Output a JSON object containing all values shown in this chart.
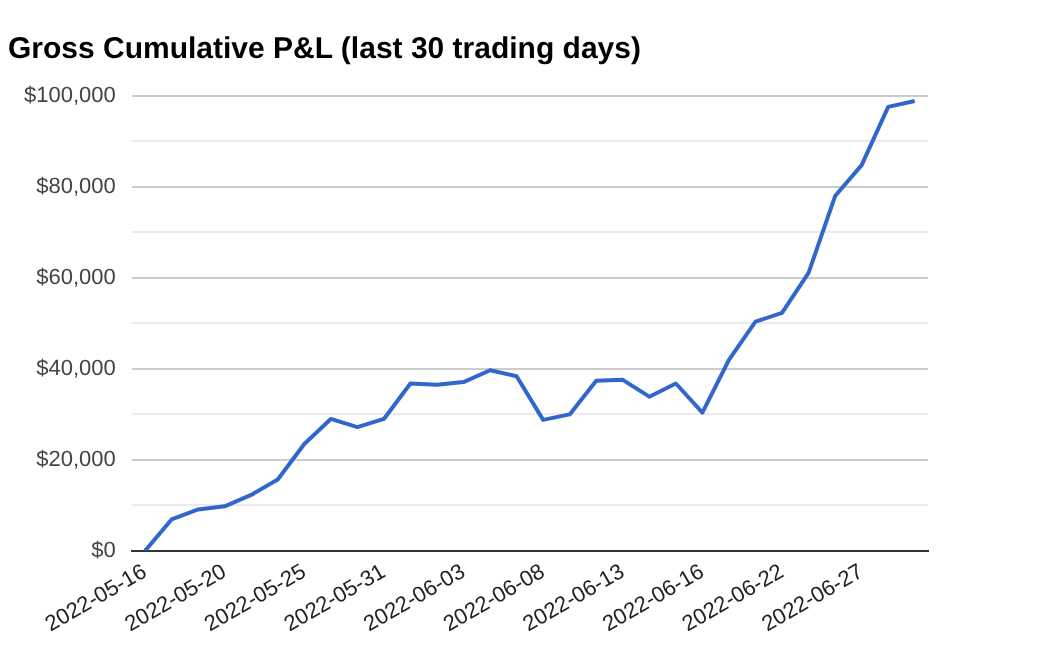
{
  "chart_data": {
    "type": "line",
    "title": "Gross Cumulative P&L (last 30 trading days)",
    "categories": [
      "2022-05-16",
      null,
      null,
      "2022-05-20",
      null,
      null,
      "2022-05-25",
      null,
      null,
      "2022-05-31",
      null,
      null,
      "2022-06-03",
      null,
      null,
      "2022-06-08",
      null,
      null,
      "2022-06-13",
      null,
      null,
      "2022-06-16",
      null,
      null,
      "2022-06-22",
      null,
      null,
      "2022-06-27",
      null,
      null
    ],
    "series": [
      {
        "color": "#3366cc",
        "values": [
          0,
          6900,
          9100,
          9800,
          12300,
          15700,
          23500,
          29000,
          27200,
          29000,
          36800,
          36500,
          37100,
          39700,
          38400,
          28800,
          30000,
          37400,
          37600,
          33900,
          36800,
          30400,
          42000,
          50400,
          52300,
          61100,
          78000,
          84800,
          97600,
          98900
        ]
      }
    ],
    "ylim": [
      0,
      100000
    ],
    "yticks": [
      {
        "value": 0,
        "label": "$0"
      },
      {
        "value": 10000,
        "label": null
      },
      {
        "value": 20000,
        "label": "$20,000"
      },
      {
        "value": 30000,
        "label": null
      },
      {
        "value": 40000,
        "label": "$40,000"
      },
      {
        "value": 50000,
        "label": null
      },
      {
        "value": 60000,
        "label": "$60,000"
      },
      {
        "value": 70000,
        "label": null
      },
      {
        "value": 80000,
        "label": "$80,000"
      },
      {
        "value": 90000,
        "label": null
      },
      {
        "value": 100000,
        "label": "$100,000"
      }
    ],
    "grid": "y",
    "legend": false,
    "marker": "none",
    "line_style": "solid"
  }
}
